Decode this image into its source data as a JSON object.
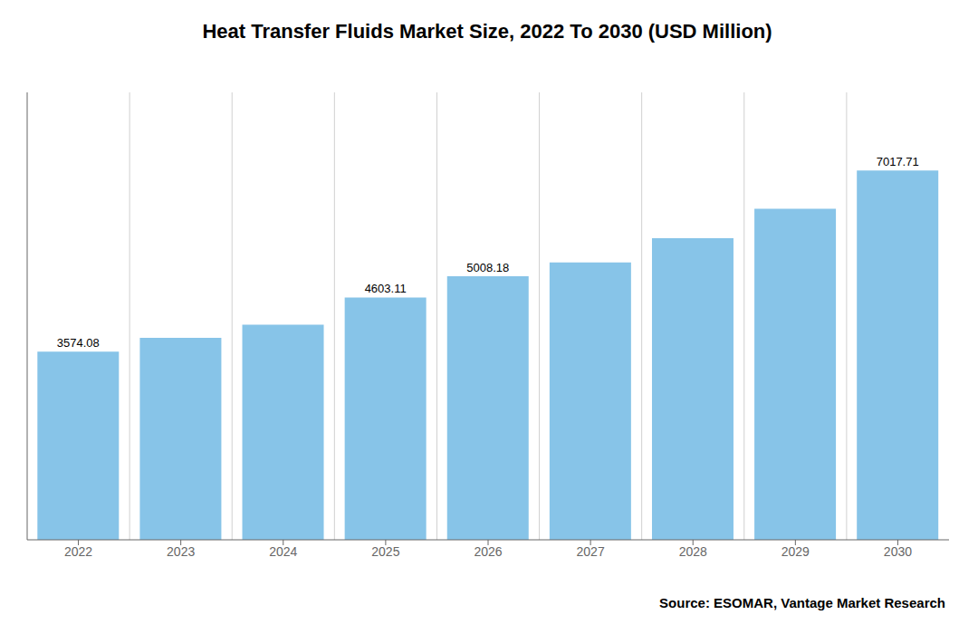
{
  "chart_data": {
    "type": "bar",
    "title": "Heat Transfer Fluids Market Size, 2022 To 2030 (USD Million)",
    "categories": [
      "2022",
      "2023",
      "2024",
      "2025",
      "2026",
      "2027",
      "2028",
      "2029",
      "2030"
    ],
    "values": [
      3574.08,
      3838.0,
      4085.0,
      4603.11,
      5008.18,
      5270.0,
      5730.0,
      6290.0,
      7017.71
    ],
    "data_labels": true,
    "value_labels": [
      "3574.08",
      null,
      null,
      "4603.11",
      "5008.18",
      null,
      null,
      null,
      "7017.71"
    ],
    "color": "#87C4E8",
    "ylim": [
      0,
      8500
    ],
    "tick_labels": "x",
    "grid": true,
    "annotations": [
      "Source: ESOMAR, Vantage Market Research"
    ]
  }
}
